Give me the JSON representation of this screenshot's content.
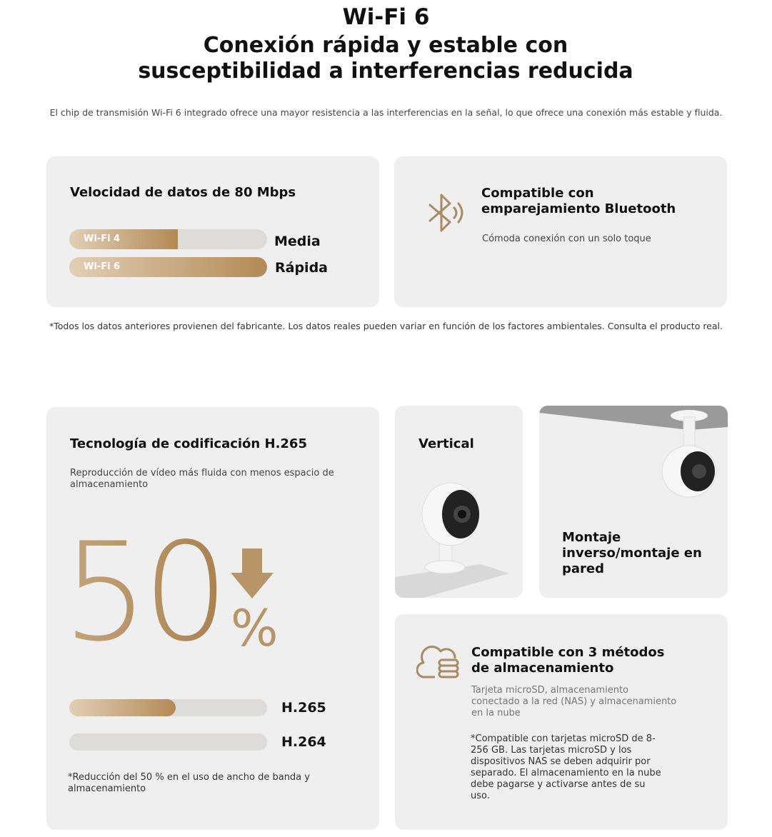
{
  "header": {
    "title": "Wi-Fi 6",
    "subtitle": "Conexión rápida y estable con susceptibilidad a interferencias reducida",
    "description": "El chip de transmisión Wi-Fi 6 integrado ofrece una mayor resistencia a las interferencias en la señal, lo que ofrece una conexión más estable y fluida."
  },
  "speed_card": {
    "title": "Velocidad de datos de 80 Mbps",
    "bars": [
      {
        "label": "Wi-Fi 4",
        "level": "Media"
      },
      {
        "label": "Wi-Fi 6",
        "level": "Rápida"
      }
    ]
  },
  "bluetooth_card": {
    "title": "Compatible con emparejamiento Bluetooth",
    "text": "Cómoda conexión con un solo toque"
  },
  "footnote": "*Todos los datos anteriores provienen del fabricante. Los datos reales pueden variar en función de los factores ambientales. Consulta el producto real.",
  "codec_card": {
    "title": "Tecnología de codificación H.265",
    "text": "Reproducción de vídeo más fluida con menos espacio de almacenamiento",
    "big_number": "50",
    "unit": "%",
    "bars": [
      "H.265",
      "H.264"
    ],
    "note": "*Reducción del 50 % en el uso de ancho de banda y almacenamiento"
  },
  "vertical_card": {
    "title": "Vertical"
  },
  "mount_card": {
    "title": "Montaje inverso/montaje en pared"
  },
  "storage_card": {
    "title": "Compatible con 3 métodos de almacenamiento",
    "text": "Tarjeta microSD, almacenamiento conectado a la red (NAS) y almacenamiento en la nube",
    "note": "*Compatible con tarjetas microSD de 8-256 GB. Las tarjetas microSD y los dispositivos NAS se deben adquirir por separado. El almacenamiento en la nube debe pagarse y activarse antes de su uso."
  }
}
